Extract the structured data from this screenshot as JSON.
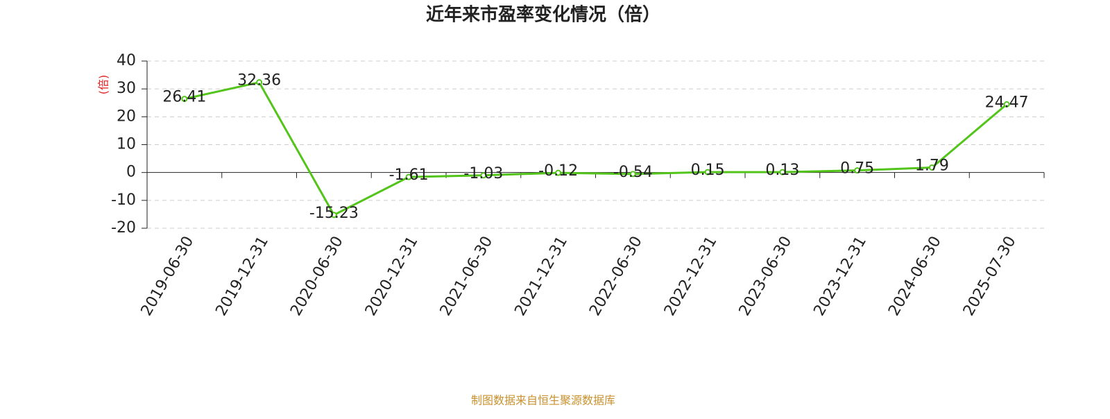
{
  "chart_data": {
    "type": "line",
    "title": "近年来市盈率变化情况（倍）",
    "y_label": "(倍)",
    "source": "制图数据来自恒生聚源数据库",
    "categories": [
      "2019-06-30",
      "2019-12-31",
      "2020-06-30",
      "2020-12-31",
      "2021-06-30",
      "2021-12-31",
      "2022-06-30",
      "2022-12-31",
      "2023-06-30",
      "2023-12-31",
      "2024-06-30",
      "2025-07-30"
    ],
    "values": [
      26.41,
      32.36,
      -15.23,
      -1.61,
      -1.03,
      -0.12,
      -0.54,
      0.15,
      0.13,
      0.75,
      1.79,
      24.47
    ],
    "color": "#52c41a",
    "ylim": [
      -20,
      40
    ],
    "yticks": [
      -20,
      -10,
      0,
      10,
      20,
      30,
      40
    ],
    "grid": true
  }
}
